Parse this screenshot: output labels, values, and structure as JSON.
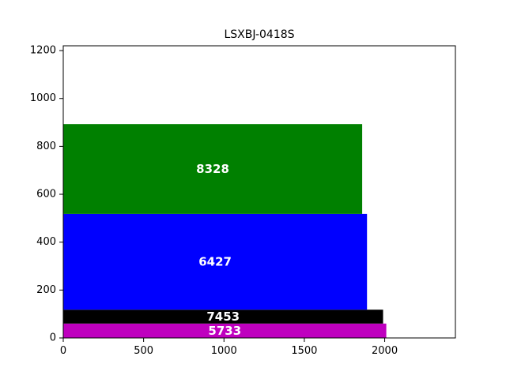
{
  "chart_data": {
    "type": "bar",
    "orientation": "horizontal",
    "title": "LSXBJ-0418S",
    "xlabel": "",
    "ylabel": "",
    "xlim": [
      0,
      2440
    ],
    "ylim": [
      0,
      1220
    ],
    "x_ticks": [
      "0",
      "500",
      "1000",
      "1500",
      "2000"
    ],
    "y_ticks": [
      "0",
      "200",
      "400",
      "600",
      "800",
      "1000",
      "1200"
    ],
    "grid": false,
    "bars": [
      {
        "label": "5733",
        "x_start": 0,
        "x_end": 2010,
        "y_start": 0,
        "y_end": 60,
        "color": "#bf00bf"
      },
      {
        "label": "7453",
        "x_start": 0,
        "x_end": 1990,
        "y_start": 60,
        "y_end": 118,
        "color": "#000000"
      },
      {
        "label": "6427",
        "x_start": 0,
        "x_end": 1890,
        "y_start": 118,
        "y_end": 518,
        "color": "#0000ff"
      },
      {
        "label": "8328",
        "x_start": 0,
        "x_end": 1860,
        "y_start": 518,
        "y_end": 893,
        "color": "#008000"
      }
    ]
  }
}
